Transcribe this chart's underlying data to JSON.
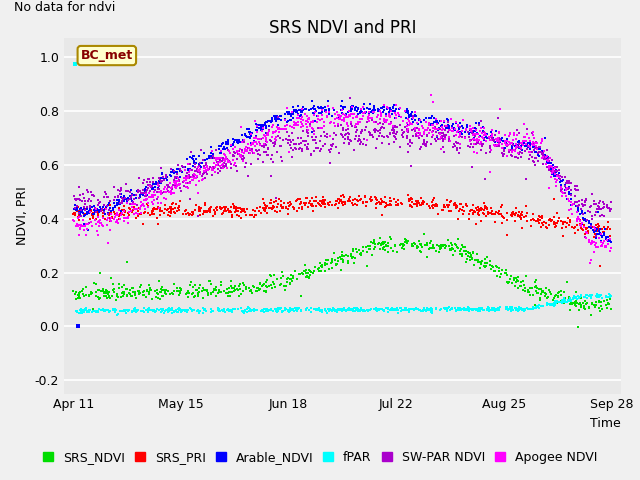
{
  "title": "SRS NDVI and PRI",
  "no_data_text": "No data for ndvi",
  "ylabel": "NDVI, PRI",
  "xlabel": "Time",
  "fig_bg_color": "#f0f0f0",
  "plot_bg_color": "#e8e8e8",
  "ylim": [
    -0.25,
    1.07
  ],
  "yticks": [
    -0.2,
    0.0,
    0.2,
    0.4,
    0.6,
    0.8,
    1.0
  ],
  "xtick_positions": [
    0,
    34,
    68,
    102,
    136,
    170
  ],
  "xtick_labels": [
    "Apr 11",
    "May 15",
    "Jun 18",
    "Jul 22",
    "Aug 25",
    "Sep 28"
  ],
  "legend_items": [
    {
      "label": "SRS_NDVI",
      "color": "#00dd00"
    },
    {
      "label": "SRS_PRI",
      "color": "#ff0000"
    },
    {
      "label": "Arable_NDVI",
      "color": "#0000ff"
    },
    {
      "label": "fPAR",
      "color": "#00ffff"
    },
    {
      "label": "SW-PAR NDVI",
      "color": "#aa00cc"
    },
    {
      "label": "Apogee NDVI",
      "color": "#ff00ff"
    }
  ],
  "box_label": "BC_met",
  "box_text_color": "#880000",
  "box_bg_color": "#ffffcc",
  "box_edge_color": "#aa8800",
  "title_fontsize": 12,
  "axis_fontsize": 9,
  "tick_fontsize": 9,
  "legend_fontsize": 9
}
